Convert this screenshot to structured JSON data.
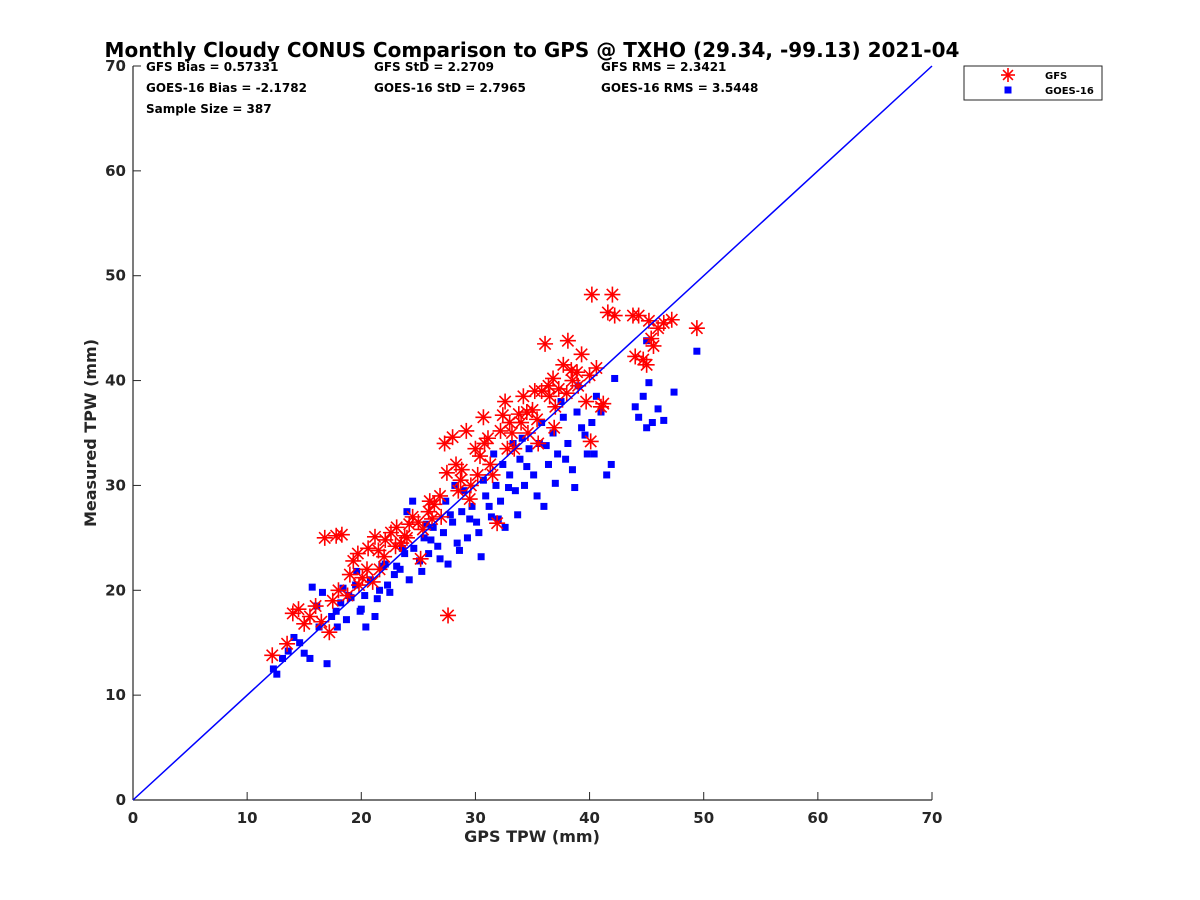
{
  "chart_data": {
    "type": "scatter",
    "title": "Monthly Cloudy CONUS Comparison to GPS @ TXHO (29.34, -99.13) 2021-04",
    "xlabel": "GPS TPW (mm)",
    "ylabel": "Measured TPW (mm)",
    "xlim": [
      0,
      70
    ],
    "ylim": [
      0,
      70
    ],
    "xticks": [
      0,
      10,
      20,
      30,
      40,
      50,
      60,
      70
    ],
    "yticks": [
      0,
      10,
      20,
      30,
      40,
      50,
      60,
      70
    ],
    "grid": false,
    "legend_position": "top-right-outside",
    "stats": {
      "gfs_bias": "GFS Bias = 0.57331",
      "gfs_std": "GFS StD = 2.2709",
      "gfs_rms": "GFS RMS = 2.3421",
      "goes_bias": "GOES-16 Bias = -2.1782",
      "goes_std": "GOES-16 StD = 2.7965",
      "goes_rms": "GOES-16 RMS = 3.5448",
      "sample_size": "Sample Size = 387"
    },
    "reference_line": {
      "x": [
        0,
        70
      ],
      "y": [
        0,
        70
      ],
      "color": "#0000ff"
    },
    "series": [
      {
        "name": "GFS",
        "marker": "asterisk",
        "color": "#ff0000",
        "points": [
          [
            12.2,
            13.8
          ],
          [
            13.5,
            14.9
          ],
          [
            14.0,
            17.8
          ],
          [
            14.5,
            18.2
          ],
          [
            15.0,
            16.8
          ],
          [
            15.5,
            17.5
          ],
          [
            16.0,
            18.5
          ],
          [
            16.8,
            25.0
          ],
          [
            17.2,
            16.0
          ],
          [
            17.8,
            25.2
          ],
          [
            18.3,
            25.3
          ],
          [
            18.8,
            19.5
          ],
          [
            19.3,
            22.8
          ],
          [
            19.7,
            23.5
          ],
          [
            20.1,
            21.2
          ],
          [
            20.6,
            24.0
          ],
          [
            21.2,
            25.1
          ],
          [
            21.6,
            22.0
          ],
          [
            22.1,
            24.8
          ],
          [
            22.6,
            25.5
          ],
          [
            23.1,
            26.0
          ],
          [
            23.5,
            24.5
          ],
          [
            24.0,
            25.0
          ],
          [
            24.5,
            27.0
          ],
          [
            25.0,
            26.5
          ],
          [
            25.4,
            25.8
          ],
          [
            25.9,
            27.5
          ],
          [
            26.4,
            28.2
          ],
          [
            26.9,
            29.0
          ],
          [
            27.3,
            34.0
          ],
          [
            27.5,
            31.2
          ],
          [
            27.6,
            17.6
          ],
          [
            28.0,
            34.6
          ],
          [
            28.3,
            32.0
          ],
          [
            28.8,
            31.5
          ],
          [
            29.2,
            35.2
          ],
          [
            29.6,
            30.0
          ],
          [
            30.0,
            33.5
          ],
          [
            30.4,
            32.8
          ],
          [
            30.7,
            36.5
          ],
          [
            31.1,
            34.5
          ],
          [
            31.5,
            31.0
          ],
          [
            31.9,
            26.4
          ],
          [
            32.2,
            35.2
          ],
          [
            32.6,
            38.0
          ],
          [
            33.0,
            36.0
          ],
          [
            33.4,
            33.5
          ],
          [
            33.8,
            36.8
          ],
          [
            34.2,
            38.5
          ],
          [
            34.6,
            35.0
          ],
          [
            35.0,
            37.2
          ],
          [
            35.4,
            36.3
          ],
          [
            35.8,
            39.0
          ],
          [
            36.1,
            43.5
          ],
          [
            36.5,
            38.5
          ],
          [
            36.9,
            35.5
          ],
          [
            37.3,
            39.2
          ],
          [
            37.7,
            41.5
          ],
          [
            38.1,
            43.8
          ],
          [
            38.5,
            40.0
          ],
          [
            38.9,
            40.8
          ],
          [
            39.3,
            42.5
          ],
          [
            39.7,
            38.0
          ],
          [
            40.1,
            34.2
          ],
          [
            40.2,
            48.2
          ],
          [
            40.6,
            41.2
          ],
          [
            41.2,
            37.8
          ],
          [
            41.6,
            46.5
          ],
          [
            42.0,
            48.2
          ],
          [
            42.2,
            46.2
          ],
          [
            44.0,
            42.3
          ],
          [
            44.3,
            46.2
          ],
          [
            44.7,
            42.0
          ],
          [
            45.0,
            41.5
          ],
          [
            45.2,
            45.7
          ],
          [
            45.6,
            43.3
          ],
          [
            46.0,
            45.0
          ],
          [
            46.5,
            45.5
          ],
          [
            47.2,
            45.8
          ],
          [
            49.4,
            45.0
          ],
          [
            18.0,
            20.0
          ],
          [
            19.0,
            21.5
          ],
          [
            20.5,
            22.0
          ],
          [
            22.0,
            23.2
          ],
          [
            24.2,
            26.3
          ],
          [
            26.0,
            28.5
          ],
          [
            28.5,
            29.5
          ],
          [
            30.2,
            31.0
          ],
          [
            32.8,
            33.5
          ],
          [
            34.5,
            37.0
          ],
          [
            36.4,
            39.5
          ],
          [
            38.0,
            38.8
          ],
          [
            21.0,
            20.8
          ],
          [
            23.0,
            24.2
          ],
          [
            25.2,
            23.0
          ],
          [
            27.0,
            27.0
          ],
          [
            29.5,
            28.7
          ],
          [
            31.3,
            32.0
          ],
          [
            33.2,
            35.0
          ],
          [
            35.5,
            34.0
          ],
          [
            37.0,
            37.5
          ],
          [
            39.0,
            39.5
          ],
          [
            16.5,
            17.0
          ],
          [
            17.5,
            19.0
          ],
          [
            19.8,
            20.5
          ],
          [
            21.5,
            23.8
          ],
          [
            23.8,
            25.2
          ],
          [
            26.2,
            26.8
          ],
          [
            28.7,
            30.5
          ],
          [
            30.8,
            34.0
          ],
          [
            32.4,
            36.7
          ],
          [
            34.0,
            36.0
          ],
          [
            35.2,
            39.0
          ],
          [
            36.8,
            40.2
          ],
          [
            38.4,
            41.0
          ],
          [
            40.0,
            40.5
          ],
          [
            41.0,
            37.5
          ],
          [
            43.8,
            46.2
          ],
          [
            45.4,
            44.0
          ]
        ]
      },
      {
        "name": "GOES-16",
        "marker": "square",
        "color": "#0000ff",
        "points": [
          [
            12.3,
            12.5
          ],
          [
            12.6,
            12.0
          ],
          [
            13.1,
            13.5
          ],
          [
            13.6,
            14.2
          ],
          [
            14.1,
            15.5
          ],
          [
            14.6,
            15.0
          ],
          [
            15.0,
            14.0
          ],
          [
            15.5,
            13.5
          ],
          [
            15.7,
            20.3
          ],
          [
            16.1,
            18.5
          ],
          [
            16.6,
            19.8
          ],
          [
            17.0,
            13.0
          ],
          [
            17.4,
            17.5
          ],
          [
            17.9,
            16.5
          ],
          [
            18.2,
            18.8
          ],
          [
            18.7,
            17.2
          ],
          [
            19.1,
            19.3
          ],
          [
            19.5,
            20.5
          ],
          [
            19.9,
            18.0
          ],
          [
            20.3,
            19.5
          ],
          [
            20.8,
            21.0
          ],
          [
            21.2,
            17.5
          ],
          [
            21.6,
            20.0
          ],
          [
            22.1,
            22.5
          ],
          [
            22.5,
            19.8
          ],
          [
            22.9,
            21.5
          ],
          [
            23.4,
            22.0
          ],
          [
            23.8,
            23.5
          ],
          [
            24.2,
            21.0
          ],
          [
            24.6,
            24.0
          ],
          [
            25.1,
            22.8
          ],
          [
            25.5,
            25.0
          ],
          [
            25.9,
            23.5
          ],
          [
            26.3,
            26.0
          ],
          [
            26.7,
            24.2
          ],
          [
            27.2,
            25.5
          ],
          [
            27.6,
            22.5
          ],
          [
            28.0,
            26.5
          ],
          [
            28.4,
            24.5
          ],
          [
            28.8,
            27.5
          ],
          [
            29.3,
            25.0
          ],
          [
            29.7,
            28.0
          ],
          [
            30.1,
            26.5
          ],
          [
            30.5,
            23.2
          ],
          [
            30.9,
            29.0
          ],
          [
            31.4,
            27.0
          ],
          [
            31.8,
            30.0
          ],
          [
            32.2,
            28.5
          ],
          [
            32.6,
            26.0
          ],
          [
            33.0,
            31.0
          ],
          [
            33.5,
            29.5
          ],
          [
            33.9,
            32.5
          ],
          [
            34.3,
            30.0
          ],
          [
            34.7,
            33.5
          ],
          [
            35.1,
            31.0
          ],
          [
            35.6,
            34.0
          ],
          [
            36.0,
            28.0
          ],
          [
            36.4,
            32.0
          ],
          [
            36.8,
            35.0
          ],
          [
            37.2,
            33.0
          ],
          [
            37.7,
            36.5
          ],
          [
            38.1,
            34.0
          ],
          [
            38.5,
            31.5
          ],
          [
            38.9,
            37.0
          ],
          [
            39.3,
            35.5
          ],
          [
            39.8,
            33.0
          ],
          [
            40.2,
            36.0
          ],
          [
            40.6,
            38.5
          ],
          [
            41.0,
            37.0
          ],
          [
            41.5,
            31.0
          ],
          [
            41.9,
            32.0
          ],
          [
            42.2,
            40.2
          ],
          [
            44.0,
            37.5
          ],
          [
            44.3,
            36.5
          ],
          [
            44.7,
            38.5
          ],
          [
            45.0,
            35.5
          ],
          [
            45.2,
            39.8
          ],
          [
            45.5,
            36.0
          ],
          [
            46.0,
            37.3
          ],
          [
            46.5,
            36.2
          ],
          [
            47.4,
            38.9
          ],
          [
            49.4,
            42.8
          ],
          [
            45.0,
            43.8
          ],
          [
            16.3,
            16.5
          ],
          [
            17.8,
            18.0
          ],
          [
            18.9,
            19.5
          ],
          [
            19.6,
            21.8
          ],
          [
            20.4,
            16.5
          ],
          [
            21.4,
            19.2
          ],
          [
            22.3,
            20.5
          ],
          [
            23.1,
            22.3
          ],
          [
            24.0,
            27.5
          ],
          [
            25.3,
            21.8
          ],
          [
            26.1,
            24.8
          ],
          [
            26.9,
            23.0
          ],
          [
            27.8,
            27.2
          ],
          [
            28.6,
            23.8
          ],
          [
            29.5,
            26.8
          ],
          [
            30.3,
            25.5
          ],
          [
            31.2,
            28.0
          ],
          [
            32.0,
            26.8
          ],
          [
            32.9,
            29.8
          ],
          [
            33.7,
            27.2
          ],
          [
            34.5,
            31.8
          ],
          [
            35.4,
            29.0
          ],
          [
            36.2,
            33.8
          ],
          [
            37.0,
            30.2
          ],
          [
            37.9,
            32.5
          ],
          [
            38.7,
            29.8
          ],
          [
            39.6,
            34.8
          ],
          [
            40.4,
            33.0
          ],
          [
            18.4,
            20.2
          ],
          [
            20.0,
            18.2
          ],
          [
            21.8,
            22.3
          ],
          [
            23.6,
            24.0
          ],
          [
            25.7,
            26.3
          ],
          [
            27.4,
            28.5
          ],
          [
            29.0,
            29.5
          ],
          [
            30.7,
            30.5
          ],
          [
            32.4,
            32.0
          ],
          [
            34.1,
            34.5
          ],
          [
            35.8,
            36.0
          ],
          [
            37.5,
            38.0
          ],
          [
            39.0,
            39.5
          ],
          [
            24.5,
            28.5
          ],
          [
            28.2,
            30.0
          ],
          [
            31.6,
            33.0
          ],
          [
            33.3,
            34.0
          ]
        ]
      }
    ]
  }
}
